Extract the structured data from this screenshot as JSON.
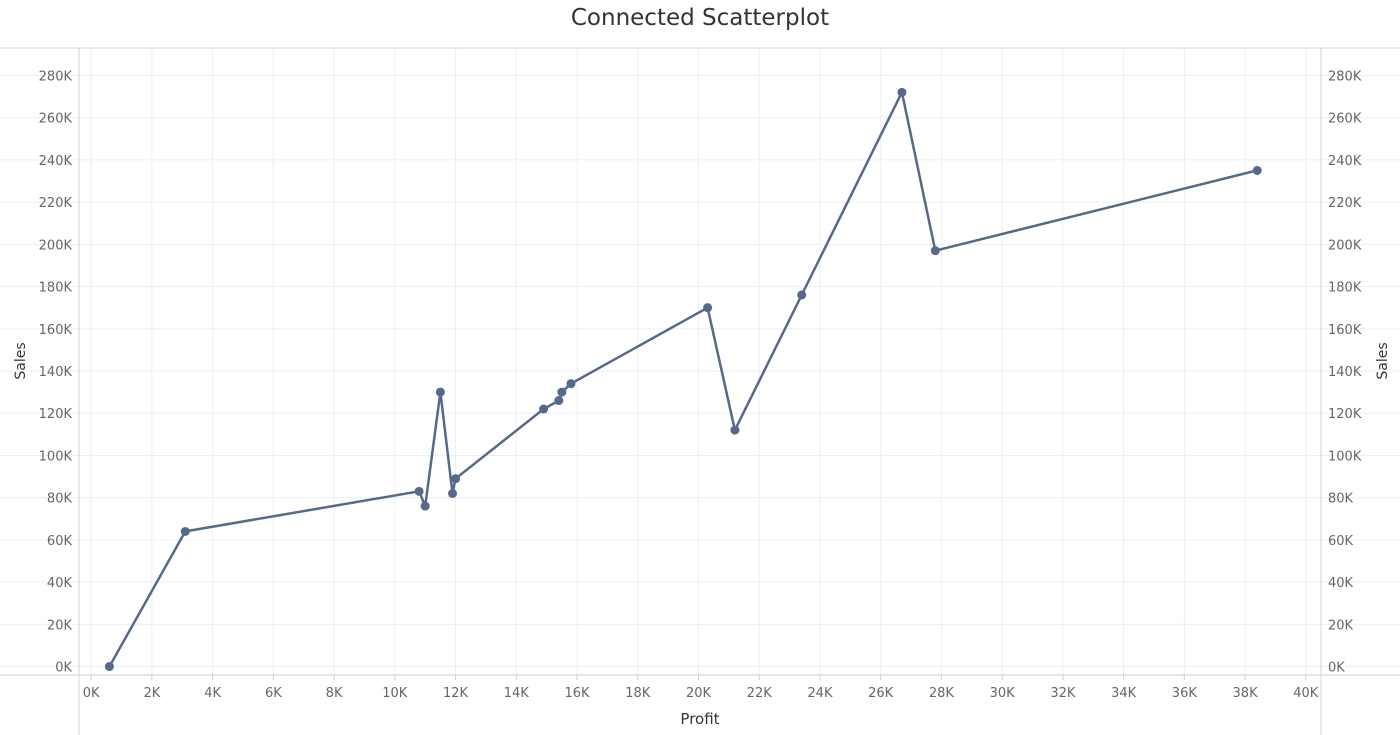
{
  "chart_data": {
    "type": "scatter",
    "connected": true,
    "title": "Connected Scatterplot",
    "xlabel": "Profit",
    "ylabel": "Sales",
    "ylabel_right": "Sales",
    "xlim": [
      -400,
      40500
    ],
    "ylim": [
      -4000,
      293000
    ],
    "x_ticks": [
      0,
      2000,
      4000,
      6000,
      8000,
      10000,
      12000,
      14000,
      16000,
      18000,
      20000,
      22000,
      24000,
      26000,
      28000,
      30000,
      32000,
      34000,
      36000,
      38000,
      40000
    ],
    "x_tick_labels": [
      "0K",
      "2K",
      "4K",
      "6K",
      "8K",
      "10K",
      "12K",
      "14K",
      "16K",
      "18K",
      "20K",
      "22K",
      "24K",
      "26K",
      "28K",
      "30K",
      "32K",
      "34K",
      "36K",
      "38K",
      "40K"
    ],
    "y_ticks": [
      0,
      20000,
      40000,
      60000,
      80000,
      100000,
      120000,
      140000,
      160000,
      180000,
      200000,
      220000,
      240000,
      260000,
      280000
    ],
    "y_tick_labels": [
      "0K",
      "20K",
      "40K",
      "60K",
      "80K",
      "100K",
      "120K",
      "140K",
      "160K",
      "180K",
      "200K",
      "220K",
      "240K",
      "260K",
      "280K"
    ],
    "grid": true,
    "series": [
      {
        "color": "#56698a",
        "points": [
          {
            "x": 600,
            "y": 0
          },
          {
            "x": 3100,
            "y": 64000
          },
          {
            "x": 10800,
            "y": 83000
          },
          {
            "x": 11000,
            "y": 76000
          },
          {
            "x": 11500,
            "y": 130000
          },
          {
            "x": 11900,
            "y": 82000
          },
          {
            "x": 12000,
            "y": 89000
          },
          {
            "x": 14900,
            "y": 122000
          },
          {
            "x": 15400,
            "y": 126000
          },
          {
            "x": 15500,
            "y": 130000
          },
          {
            "x": 15800,
            "y": 134000
          },
          {
            "x": 20300,
            "y": 170000
          },
          {
            "x": 21200,
            "y": 112000
          },
          {
            "x": 23400,
            "y": 176000
          },
          {
            "x": 26700,
            "y": 272000
          },
          {
            "x": 27800,
            "y": 197000
          },
          {
            "x": 38400,
            "y": 235000
          }
        ]
      }
    ]
  }
}
